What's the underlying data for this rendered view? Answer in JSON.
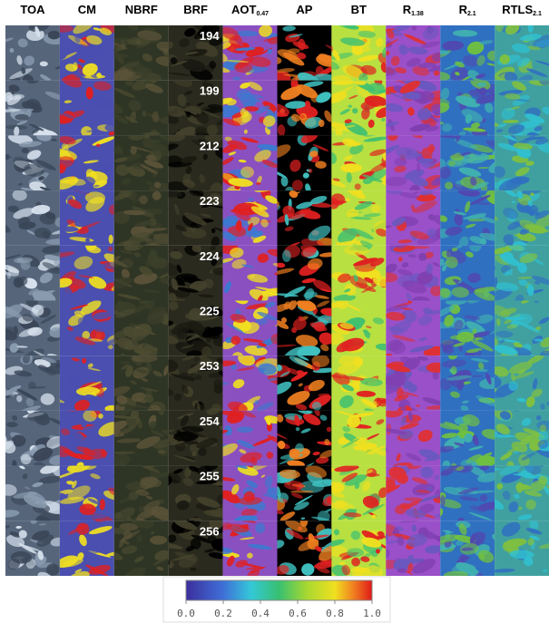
{
  "columns": [
    {
      "text": "TOA"
    },
    {
      "text": "CM"
    },
    {
      "text": "NBRF"
    },
    {
      "text": "BRF"
    },
    {
      "text": "AOT",
      "sub": "0.47"
    },
    {
      "text": "AP"
    },
    {
      "text": "BT"
    },
    {
      "text": "R",
      "sub": "1.38"
    },
    {
      "text": "R",
      "sub": "2.1"
    },
    {
      "text": "RTLS",
      "sub": "2.1"
    }
  ],
  "rows": [
    "194",
    "199",
    "212",
    "223",
    "224",
    "225",
    "253",
    "254",
    "255",
    "256"
  ],
  "colorbar": {
    "range": [
      0,
      1
    ],
    "ticks": [
      {
        "value": 0,
        "label": "0.0"
      },
      {
        "value": 0.2,
        "label": "0.2"
      },
      {
        "value": 0.4,
        "label": "0.4"
      },
      {
        "value": 0.6,
        "label": "0.6"
      },
      {
        "value": 0.8,
        "label": "0.8"
      },
      {
        "value": 1,
        "label": "1.0"
      }
    ]
  }
}
